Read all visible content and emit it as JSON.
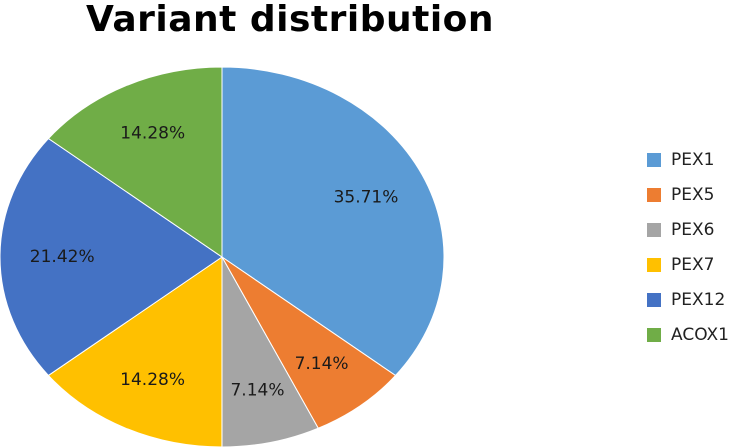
{
  "chart_data": {
    "type": "pie",
    "title": "Variant distribution",
    "categories": [
      "PEX1",
      "PEX5",
      "PEX6",
      "PEX7",
      "PEX12",
      "ACOX1"
    ],
    "values": [
      35.71,
      7.14,
      7.14,
      14.28,
      21.42,
      14.28
    ],
    "data_labels": [
      "35.71%",
      "7.14%",
      "7.14%",
      "14.28%",
      "21.42%",
      "14.28%"
    ],
    "colors": [
      "#5b9bd5",
      "#ed7d31",
      "#a5a5a5",
      "#ffc000",
      "#4472c4",
      "#70ad47"
    ],
    "start_angle": "12 o'clock",
    "direction": "clockwise",
    "legend_position": "right"
  }
}
